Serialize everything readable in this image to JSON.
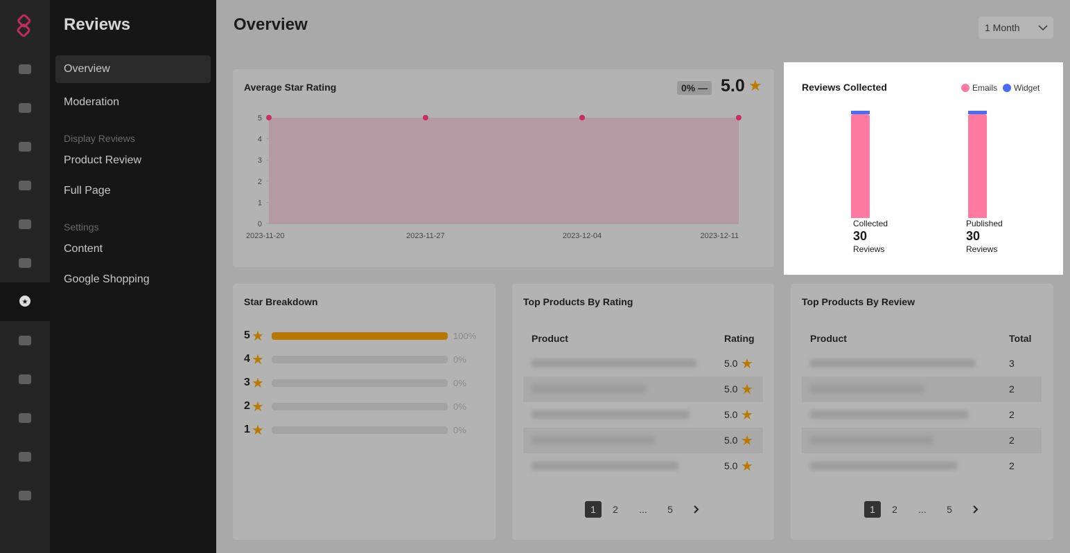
{
  "app": {
    "title": "Reviews"
  },
  "nav": {
    "items": [
      "Overview",
      "Moderation"
    ],
    "display_section": "Display Reviews",
    "display_items": [
      "Product Review",
      "Full Page"
    ],
    "settings_section": "Settings",
    "settings_items": [
      "Content",
      "Google Shopping"
    ]
  },
  "rail_icons": [
    "logo-icon",
    "dashboard-icon",
    "customers-icon",
    "marketing-icon",
    "sync-icon",
    "messages-icon",
    "export-icon",
    "reviews-icon",
    "box-icon",
    "newsletter-icon",
    "settings-icon",
    "logout-icon",
    "user-settings-icon"
  ],
  "header": {
    "title": "Overview",
    "period": "1 Month"
  },
  "avg": {
    "title": "Average Star Rating",
    "change": "0%",
    "trend": "—",
    "value": "5.0"
  },
  "chart_data": [
    {
      "type": "area",
      "categories": [
        "2023-11-20",
        "2023-11-27",
        "2023-12-04",
        "2023-12-11"
      ],
      "values": [
        5,
        5,
        5,
        5
      ],
      "ylim": [
        0,
        5
      ],
      "yticks": [
        "0",
        "1",
        "2",
        "3",
        "4",
        "5"
      ],
      "color": "#c7305e"
    },
    {
      "type": "bar",
      "stacked": true,
      "categories": [
        "Collected",
        "Published"
      ],
      "series": [
        {
          "name": "Emails",
          "values": [
            29,
            29
          ],
          "color": "#ff7aa1"
        },
        {
          "name": "Widget",
          "values": [
            1,
            1
          ],
          "color": "#4a6cf7"
        }
      ]
    }
  ],
  "collected": {
    "title": "Reviews Collected",
    "legend": [
      "Emails",
      "Widget"
    ],
    "stats": [
      {
        "label": "Collected",
        "value": "30",
        "unit": "Reviews"
      },
      {
        "label": "Published",
        "value": "30",
        "unit": "Reviews"
      }
    ]
  },
  "breakdown": {
    "title": "Star Breakdown",
    "rows": [
      {
        "stars": "5",
        "pct": "100%",
        "fill": 100
      },
      {
        "stars": "4",
        "pct": "0%",
        "fill": 0
      },
      {
        "stars": "3",
        "pct": "0%",
        "fill": 0
      },
      {
        "stars": "2",
        "pct": "0%",
        "fill": 0
      },
      {
        "stars": "1",
        "pct": "0%",
        "fill": 0
      }
    ]
  },
  "by_rating": {
    "title": "Top Products By Rating",
    "cols": [
      "Product",
      "Rating"
    ],
    "values": [
      "5.0",
      "5.0",
      "5.0",
      "5.0",
      "5.0"
    ]
  },
  "by_review": {
    "title": "Top Products By Review",
    "cols": [
      "Product",
      "Total"
    ],
    "values": [
      "3",
      "2",
      "2",
      "2",
      "2"
    ]
  },
  "pagination": [
    "1",
    "2",
    "...",
    "5"
  ]
}
